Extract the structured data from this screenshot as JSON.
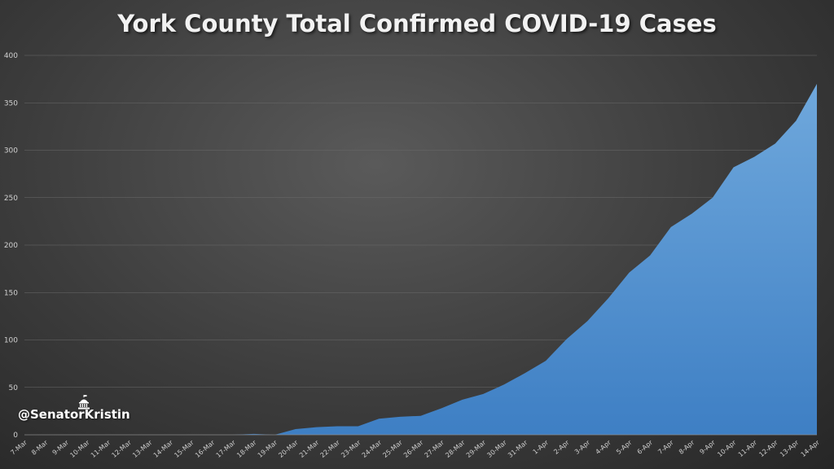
{
  "watermark": "@SenatorKristin",
  "icons": {
    "watermark_icon": "capitol-dome-icon"
  },
  "colors": {
    "area_top": "#6fa8dc",
    "area_bottom": "#3e7fc4",
    "background": "#3c3c3c"
  },
  "chart_data": {
    "type": "area",
    "title": "York County Total Confirmed COVID-19 Cases",
    "xlabel": "",
    "ylabel": "",
    "ylim": [
      0,
      400
    ],
    "yticks": [
      0,
      50,
      100,
      150,
      200,
      250,
      300,
      350,
      400
    ],
    "grid": true,
    "categories": [
      "7-Mar",
      "8-Mar",
      "9-Mar",
      "10-Mar",
      "11-Mar",
      "12-Mar",
      "13-Mar",
      "14-Mar",
      "15-Mar",
      "16-Mar",
      "17-Mar",
      "18-Mar",
      "19-Mar",
      "20-Mar",
      "21-Mar",
      "22-Mar",
      "23-Mar",
      "24-Mar",
      "25-Mar",
      "26-Mar",
      "27-Mar",
      "28-Mar",
      "29-Mar",
      "30-Mar",
      "31-Mar",
      "1-Apr",
      "2-Apr",
      "3-Apr",
      "4-Apr",
      "5-Apr",
      "6-Apr",
      "7-Apr",
      "8-Apr",
      "9-Apr",
      "10-Apr",
      "11-Apr",
      "12-Apr",
      "13-Apr",
      "14-Apr"
    ],
    "values": [
      0,
      0,
      0,
      0,
      0,
      0,
      0,
      0,
      0,
      0,
      0,
      1,
      0,
      6,
      8,
      9,
      9,
      17,
      19,
      20,
      28,
      37,
      43,
      53,
      65,
      78,
      101,
      120,
      144,
      171,
      189,
      219,
      233,
      250,
      282,
      293,
      307,
      331,
      370
    ]
  }
}
